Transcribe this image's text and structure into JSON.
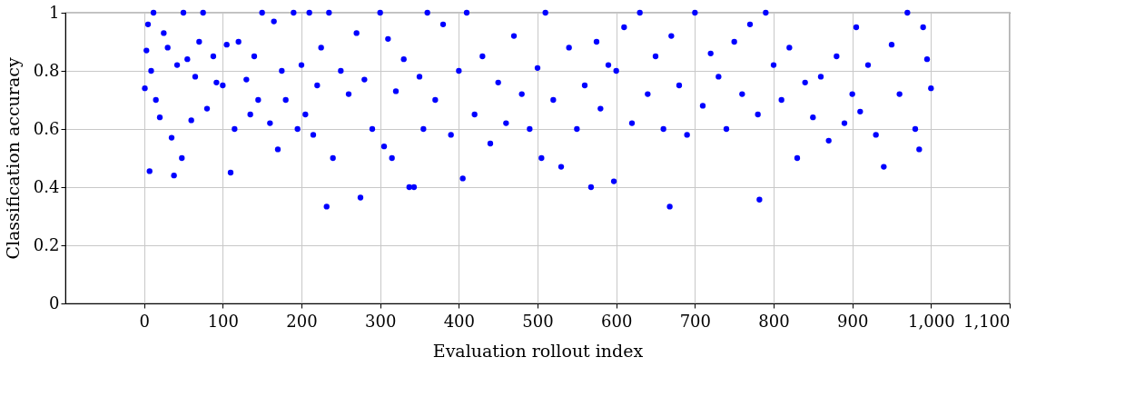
{
  "chart_data": {
    "type": "scatter",
    "xlabel": "Evaluation rollout index",
    "ylabel": "Classification accuracy",
    "xlim": [
      -100,
      1100
    ],
    "xticks": [
      0,
      100,
      200,
      300,
      400,
      500,
      600,
      700,
      800,
      900,
      {
        "value": 1000,
        "label": "1,000"
      },
      {
        "value": 1100,
        "label": "1,100"
      }
    ],
    "ylim": [
      0,
      1
    ],
    "yticks": [
      0,
      0.2,
      0.4,
      0.6,
      0.8,
      1
    ],
    "grid": true,
    "marker": "circle",
    "series": [
      {
        "color": "#0000ff",
        "x": [
          1,
          3,
          5,
          7,
          9,
          12,
          15,
          20,
          25,
          30,
          35,
          38,
          42,
          48,
          50,
          55,
          60,
          65,
          70,
          75,
          80,
          88,
          92,
          100,
          105,
          110,
          115,
          120,
          130,
          135,
          140,
          145,
          150,
          160,
          165,
          170,
          175,
          180,
          190,
          195,
          200,
          205,
          210,
          215,
          220,
          225,
          232,
          235,
          240,
          250,
          260,
          270,
          275,
          280,
          290,
          300,
          305,
          310,
          315,
          320,
          330,
          337,
          343,
          350,
          355,
          360,
          370,
          380,
          390,
          400,
          405,
          410,
          420,
          430,
          440,
          450,
          460,
          470,
          480,
          490,
          500,
          505,
          510,
          520,
          530,
          540,
          550,
          560,
          568,
          575,
          580,
          590,
          597,
          600,
          610,
          620,
          630,
          640,
          650,
          660,
          668,
          670,
          680,
          690,
          700,
          710,
          720,
          730,
          740,
          750,
          760,
          770,
          780,
          782,
          790,
          800,
          810,
          820,
          830,
          840,
          850,
          860,
          870,
          880,
          890,
          900,
          905,
          910,
          920,
          930,
          940,
          950,
          960,
          970,
          980,
          985,
          990,
          995,
          1000
        ],
        "values": [
          0.74,
          0.87,
          0.96,
          0.455,
          0.8,
          1.0,
          0.7,
          0.64,
          0.93,
          0.88,
          0.57,
          0.44,
          0.82,
          0.5,
          1.0,
          0.84,
          0.63,
          0.78,
          0.9,
          1.0,
          0.67,
          0.85,
          0.76,
          0.75,
          0.89,
          0.45,
          0.6,
          0.9,
          0.77,
          0.65,
          0.85,
          0.7,
          1.0,
          0.62,
          0.97,
          0.53,
          0.8,
          0.7,
          1.0,
          0.6,
          0.82,
          0.65,
          1.0,
          0.58,
          0.75,
          0.88,
          0.333,
          1.0,
          0.5,
          0.8,
          0.72,
          0.93,
          0.364,
          0.77,
          0.6,
          1.0,
          0.54,
          0.91,
          0.5,
          0.73,
          0.84,
          0.4,
          0.4,
          0.78,
          0.6,
          1.0,
          0.7,
          0.96,
          0.58,
          0.8,
          0.43,
          1.0,
          0.65,
          0.85,
          0.55,
          0.76,
          0.62,
          0.92,
          0.72,
          0.6,
          0.81,
          0.5,
          1.0,
          0.7,
          0.47,
          0.88,
          0.6,
          0.75,
          0.4,
          0.9,
          0.67,
          0.82,
          0.42,
          0.8,
          0.95,
          0.62,
          1.0,
          0.72,
          0.85,
          0.6,
          0.333,
          0.92,
          0.75,
          0.58,
          1.0,
          0.68,
          0.86,
          0.78,
          0.6,
          0.9,
          0.72,
          0.96,
          0.65,
          0.357,
          1.0,
          0.82,
          0.7,
          0.88,
          0.5,
          0.76,
          0.64,
          0.78,
          0.56,
          0.85,
          0.62,
          0.72,
          0.95,
          0.66,
          0.82,
          0.58,
          0.47,
          0.89,
          0.72,
          1.0,
          0.6,
          0.53,
          0.95,
          0.84,
          0.74
        ]
      }
    ]
  }
}
